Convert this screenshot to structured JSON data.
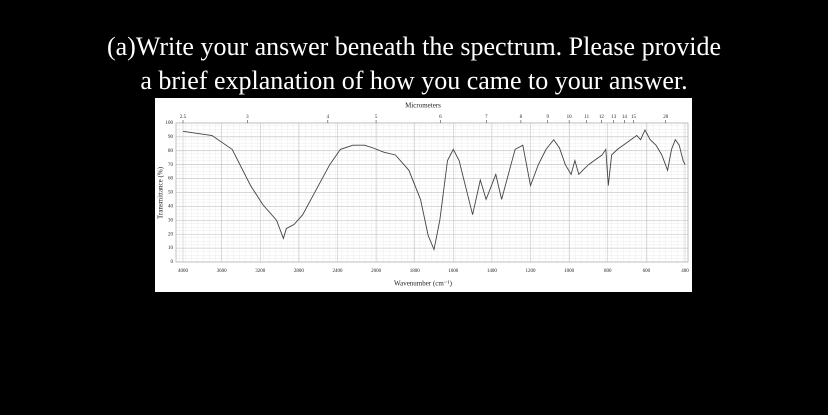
{
  "question": {
    "line1": "(a)Write your answer beneath the spectrum.  Please provide",
    "line2": "a brief explanation of how you came to your answer."
  },
  "chart_data": {
    "type": "line",
    "x2_label": "Micrometers",
    "xlabel": "Wavenumber (cm⁻¹)",
    "ylabel": "Transmittance (%)",
    "x": [
      4000,
      3700,
      3490,
      3300,
      3170,
      3030,
      2960,
      2930,
      2850,
      2760,
      2620,
      2480,
      2370,
      2240,
      2120,
      2030,
      1960,
      1900,
      1830,
      1770,
      1730,
      1700,
      1670,
      1630,
      1600,
      1570,
      1500,
      1460,
      1430,
      1380,
      1350,
      1280,
      1240,
      1200,
      1160,
      1120,
      1080,
      1050,
      1020,
      990,
      970,
      950,
      930,
      900,
      870,
      830,
      810,
      797,
      780,
      750,
      720,
      680,
      650,
      630,
      607,
      580,
      550,
      520,
      490,
      470,
      450,
      430,
      410,
      400
    ],
    "series": [
      {
        "color": "#444444",
        "values": [
          94,
          91,
          81,
          55,
          41,
          30,
          17,
          24,
          27,
          34,
          52,
          70,
          81,
          84,
          84,
          82,
          79,
          77,
          66,
          45,
          19,
          9,
          30,
          73,
          81,
          73,
          34,
          59,
          45,
          63,
          45,
          81,
          84,
          55,
          70,
          81,
          88,
          82,
          70,
          63,
          73,
          63,
          66,
          70,
          73,
          77,
          81,
          55,
          77,
          81,
          84,
          88,
          91,
          88,
          95,
          88,
          84,
          77,
          66,
          81,
          88,
          84,
          73,
          70
        ]
      }
    ],
    "xlim": [
      4000,
      400
    ],
    "xticks": [
      4000,
      3600,
      3200,
      2800,
      2400,
      2000,
      1800,
      1600,
      1400,
      1200,
      1000,
      800,
      600,
      400
    ],
    "x2ticks": [
      2.5,
      3,
      4,
      5,
      6,
      7,
      8,
      9,
      10,
      11,
      12,
      13,
      14,
      15,
      20
    ],
    "ylim": [
      0,
      100
    ],
    "yticks": [
      0,
      10,
      20,
      30,
      40,
      50,
      60,
      70,
      80,
      90,
      100
    ],
    "grid": true
  }
}
